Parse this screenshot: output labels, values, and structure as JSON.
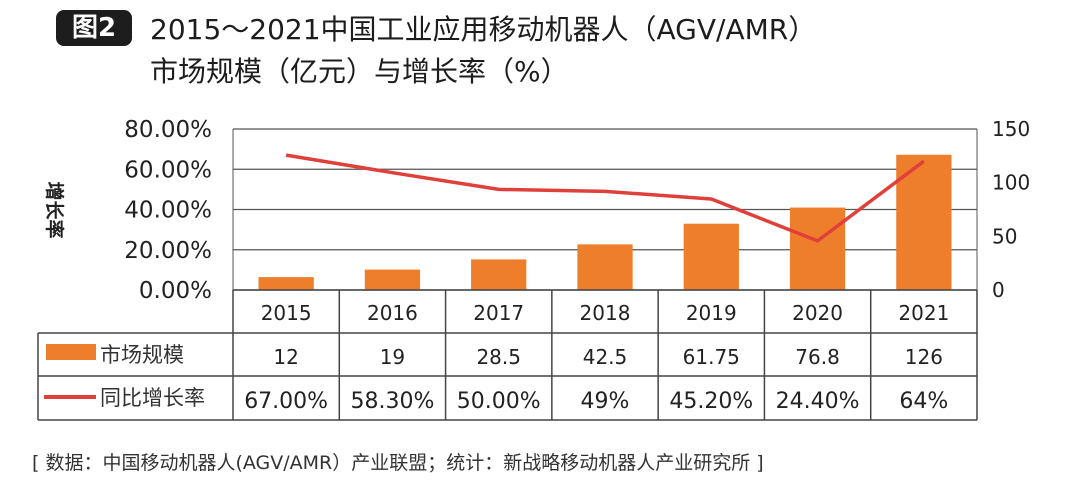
{
  "badge": "图2",
  "title_line1": "2015～2021中国工业应用移动机器人（AGV/AMR）",
  "title_line2": "市场规模（亿元）与增长率（%）",
  "footer": "[ 数据：中国移动机器人(AGV/AMR）产业联盟；统计：新战略移动机器人产业研究所 ]",
  "chart_data": {
    "type": "bar+line",
    "title": "2015～2021中国工业应用移动机器人（AGV/AMR）市场规模（亿元）与增长率（%）",
    "categories": [
      "2015",
      "2016",
      "2017",
      "2018",
      "2019",
      "2020",
      "2021"
    ],
    "ylabel_left": "增长率",
    "yleft_ticks": [
      "0.00%",
      "20.00%",
      "40.00%",
      "60.00%",
      "80.00%"
    ],
    "yleft_range": [
      0,
      80
    ],
    "yright_ticks": [
      "0",
      "50",
      "100",
      "150"
    ],
    "yright_range": [
      0,
      150
    ],
    "grid": true,
    "colors": {
      "bar": "#ee7d2c",
      "line": "#e0403a"
    },
    "series": [
      {
        "name": "市场规模",
        "type": "bar",
        "axis": "right",
        "values": [
          12,
          19,
          28.5,
          42.5,
          61.75,
          76.8,
          126
        ],
        "labels": [
          "12",
          "19",
          "28.5",
          "42.5",
          "61.75",
          "76.8",
          "126"
        ]
      },
      {
        "name": "同比增长率",
        "type": "line",
        "axis": "left",
        "values": [
          67,
          58.3,
          50,
          49,
          45.2,
          24.4,
          64
        ],
        "labels": [
          "67.00%",
          "58.30%",
          "50.00%",
          "49%",
          "45.20%",
          "24.40%",
          "64%"
        ]
      }
    ]
  }
}
